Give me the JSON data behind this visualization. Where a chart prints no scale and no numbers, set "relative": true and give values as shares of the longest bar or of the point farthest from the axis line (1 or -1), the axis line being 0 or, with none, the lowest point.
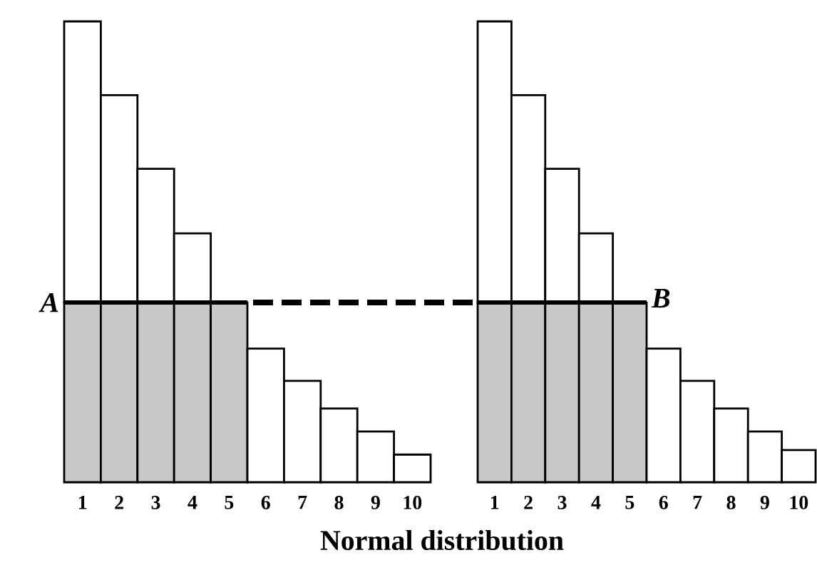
{
  "chart_data": [
    {
      "type": "bar",
      "stacked": true,
      "relative": true,
      "xlabel": "Normal distribution",
      "categories": [
        "1",
        "2",
        "3",
        "4",
        "5",
        "6",
        "7",
        "8",
        "9",
        "10"
      ],
      "series": [
        {
          "color": "#c8c8c8",
          "values": [
            0.39,
            0.39,
            0.39,
            0.39,
            0.39,
            null,
            null,
            null,
            null,
            null
          ]
        },
        {
          "color": "#ffffff",
          "values": [
            0.61,
            0.45,
            0.29,
            0.15,
            null,
            0.29,
            0.22,
            0.16,
            0.11,
            0.06
          ]
        }
      ],
      "ref_lines": [
        {
          "axis": "y",
          "value": 0.39,
          "label": "A"
        }
      ]
    },
    {
      "type": "bar",
      "stacked": true,
      "relative": true,
      "categories": [
        "1",
        "2",
        "3",
        "4",
        "5",
        "6",
        "7",
        "8",
        "9",
        "10"
      ],
      "series": [
        {
          "color": "#c8c8c8",
          "values": [
            0.39,
            0.39,
            0.39,
            0.39,
            0.39,
            null,
            null,
            null,
            null,
            null
          ]
        },
        {
          "color": "#ffffff",
          "values": [
            0.61,
            0.45,
            0.29,
            0.15,
            null,
            0.29,
            0.22,
            0.16,
            0.11,
            0.07
          ]
        }
      ],
      "ref_lines": [
        {
          "axis": "y",
          "value": 0.39,
          "label": "B"
        }
      ]
    }
  ]
}
